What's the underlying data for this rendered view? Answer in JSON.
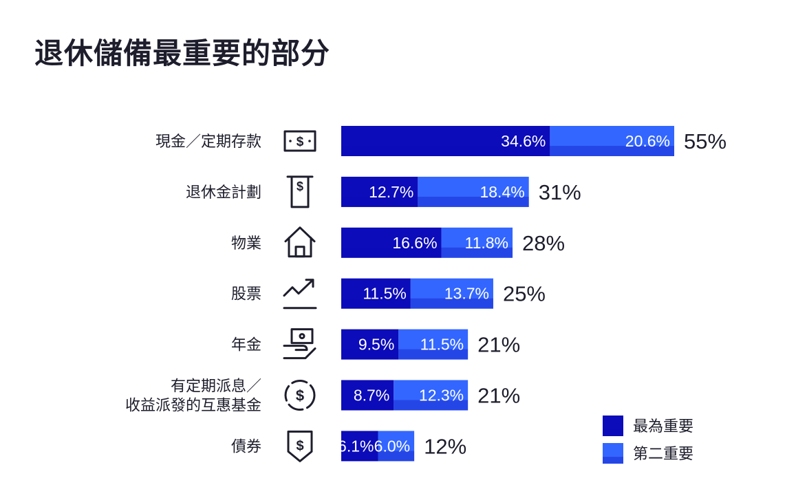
{
  "title": "退休儲備最重要的部分",
  "colors": {
    "primary": "#0c0cba",
    "secondary": "#3366ff",
    "text": "#1d1d2c"
  },
  "legend": [
    {
      "key": "primary",
      "label": "最為重要"
    },
    {
      "key": "secondary",
      "label": "第二重要"
    }
  ],
  "chart_data": {
    "type": "bar",
    "orientation": "horizontal",
    "stacked": true,
    "title": "退休儲備最重要的部分",
    "categories": [
      {
        "lines": [
          "現金／定期存款"
        ],
        "icon": "cash-bill-icon"
      },
      {
        "lines": [
          "退休金計劃"
        ],
        "icon": "document-dollar-icon"
      },
      {
        "lines": [
          "物業"
        ],
        "icon": "house-icon"
      },
      {
        "lines": [
          "股票"
        ],
        "icon": "trend-up-icon"
      },
      {
        "lines": [
          "年金"
        ],
        "icon": "hand-money-icon"
      },
      {
        "lines": [
          "有定期派息／",
          "收益派發的互惠基金"
        ],
        "icon": "circular-dollar-icon"
      },
      {
        "lines": [
          "債券"
        ],
        "icon": "shield-dollar-icon"
      }
    ],
    "series": [
      {
        "name": "最為重要",
        "values": [
          34.6,
          12.7,
          16.6,
          11.5,
          9.5,
          8.7,
          6.1
        ]
      },
      {
        "name": "第二重要",
        "values": [
          20.6,
          18.4,
          11.8,
          13.7,
          11.5,
          12.3,
          6.0
        ]
      }
    ],
    "value_labels": [
      [
        "34.6%",
        "20.6%"
      ],
      [
        "12.7%",
        "18.4%"
      ],
      [
        "16.6%",
        "11.8%"
      ],
      [
        "11.5%",
        "13.7%"
      ],
      [
        "9.5%",
        "11.5%"
      ],
      [
        "8.7%",
        "12.3%"
      ],
      [
        "6.1%",
        "6.0%"
      ]
    ],
    "totals": [
      "55%",
      "31%",
      "28%",
      "25%",
      "21%",
      "21%",
      "12%"
    ],
    "xlim": [
      0,
      55.2
    ],
    "grid": false,
    "legend_position": "bottom-right"
  }
}
